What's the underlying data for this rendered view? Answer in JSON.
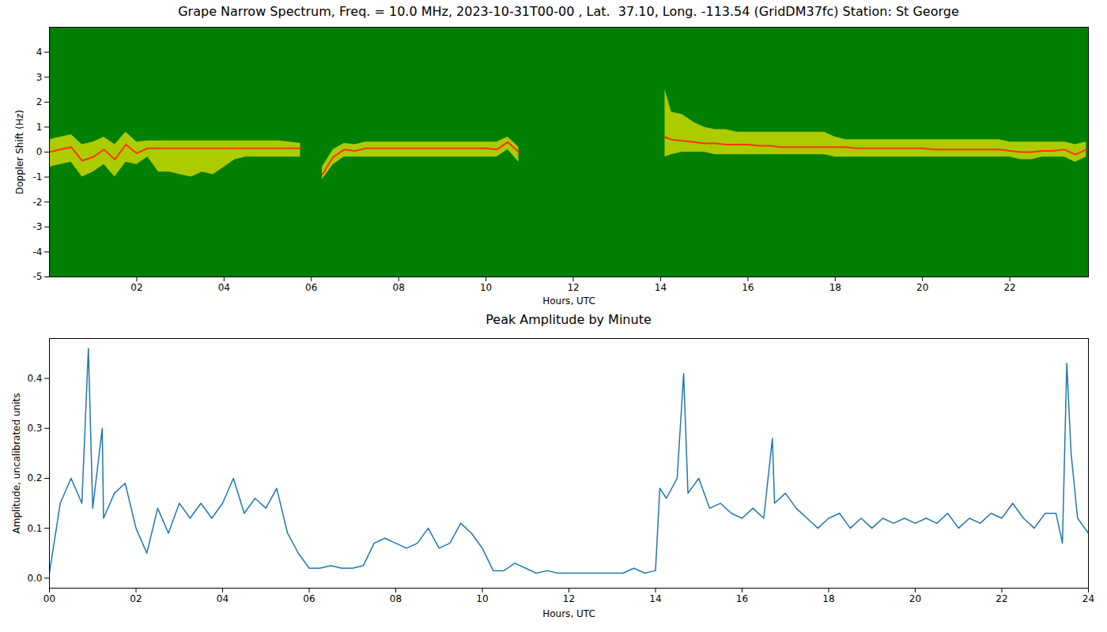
{
  "chart_data": [
    {
      "type": "line",
      "title": "Grape Narrow Spectrum, Freq. = 10.0 MHz, 2023-10-31T00-00 , Lat.  37.10, Long. -113.54 (GridDM37fc) Station: St George",
      "x_label": "Hours, UTC",
      "y_label": "Doppler Shift (Hz)",
      "x": [
        0,
        0.25,
        0.5,
        0.75,
        1,
        1.25,
        1.5,
        1.75,
        2,
        2.25,
        2.5,
        2.75,
        3,
        3.25,
        3.5,
        3.75,
        4,
        4.25,
        4.5,
        4.75,
        5,
        5.25,
        5.5,
        5.75,
        6,
        6.25,
        6.5,
        6.75,
        7,
        7.25,
        7.5,
        7.75,
        8,
        8.25,
        8.5,
        8.75,
        9,
        9.25,
        9.5,
        9.75,
        10,
        10.25,
        10.5,
        10.75,
        11,
        11.25,
        11.5,
        11.75,
        12,
        12.25,
        12.5,
        12.75,
        13,
        13.25,
        13.5,
        13.75,
        14,
        14.1,
        14.25,
        14.5,
        14.75,
        15,
        15.25,
        15.5,
        15.75,
        16,
        16.25,
        16.5,
        16.75,
        17,
        17.25,
        17.5,
        17.75,
        18,
        18.25,
        18.5,
        18.75,
        19,
        19.25,
        19.5,
        19.75,
        20,
        20.25,
        20.5,
        20.75,
        21,
        21.25,
        21.5,
        21.75,
        22,
        22.25,
        22.5,
        22.75,
        23,
        23.25,
        23.5,
        23.75
      ],
      "series": [
        {
          "type": "area",
          "color": "#e6e600",
          "values_low": [
            -0.6,
            -0.5,
            -0.4,
            -1.0,
            -0.8,
            -0.5,
            -1.0,
            -0.4,
            -0.5,
            -0.2,
            -0.8,
            -0.8,
            -0.9,
            -1.0,
            -0.8,
            -0.9,
            -0.6,
            -0.3,
            -0.2,
            -0.2,
            -0.2,
            -0.2,
            -0.2,
            -0.2,
            null,
            -1.1,
            -0.5,
            -0.2,
            -0.2,
            -0.2,
            -0.2,
            -0.2,
            -0.2,
            -0.2,
            -0.2,
            -0.2,
            -0.2,
            -0.2,
            -0.2,
            -0.2,
            -0.2,
            -0.2,
            0.1,
            -0.4,
            null,
            null,
            null,
            null,
            null,
            null,
            null,
            null,
            null,
            null,
            null,
            null,
            null,
            -0.2,
            -0.1,
            0.0,
            0.0,
            0.0,
            -0.1,
            -0.1,
            -0.1,
            -0.1,
            -0.1,
            -0.1,
            -0.1,
            -0.1,
            -0.1,
            -0.1,
            -0.1,
            -0.2,
            -0.2,
            -0.2,
            -0.2,
            -0.2,
            -0.2,
            -0.2,
            -0.2,
            -0.2,
            -0.2,
            -0.2,
            -0.2,
            -0.2,
            -0.2,
            -0.2,
            -0.2,
            -0.2,
            -0.3,
            -0.3,
            -0.2,
            -0.2,
            -0.2,
            -0.4,
            -0.2
          ],
          "values_high": [
            0.5,
            0.6,
            0.7,
            0.3,
            0.4,
            0.6,
            0.3,
            0.8,
            0.4,
            0.45,
            0.45,
            0.45,
            0.45,
            0.45,
            0.45,
            0.45,
            0.45,
            0.45,
            0.45,
            0.45,
            0.45,
            0.45,
            0.4,
            0.35,
            null,
            -0.6,
            0.1,
            0.35,
            0.3,
            0.4,
            0.4,
            0.4,
            0.4,
            0.4,
            0.4,
            0.4,
            0.4,
            0.4,
            0.4,
            0.4,
            0.4,
            0.4,
            0.6,
            0.2,
            null,
            null,
            null,
            null,
            null,
            null,
            null,
            null,
            null,
            null,
            null,
            null,
            null,
            2.5,
            1.6,
            1.5,
            1.2,
            1.0,
            0.9,
            0.9,
            0.8,
            0.8,
            0.8,
            0.8,
            0.8,
            0.8,
            0.8,
            0.8,
            0.8,
            0.6,
            0.5,
            0.5,
            0.5,
            0.5,
            0.5,
            0.5,
            0.5,
            0.5,
            0.5,
            0.5,
            0.5,
            0.5,
            0.5,
            0.5,
            0.5,
            0.4,
            0.4,
            0.4,
            0.4,
            0.4,
            0.4,
            0.3,
            0.4
          ]
        },
        {
          "type": "line",
          "color": "#ff3300",
          "values": [
            0.0,
            0.1,
            0.2,
            -0.35,
            -0.2,
            0.1,
            -0.3,
            0.3,
            -0.05,
            0.15,
            0.15,
            0.15,
            0.15,
            0.15,
            0.15,
            0.15,
            0.15,
            0.15,
            0.15,
            0.15,
            0.15,
            0.15,
            0.15,
            0.15,
            null,
            -0.9,
            -0.2,
            0.1,
            0.05,
            0.15,
            0.15,
            0.15,
            0.15,
            0.15,
            0.15,
            0.15,
            0.15,
            0.15,
            0.15,
            0.15,
            0.15,
            0.1,
            0.4,
            0.0,
            null,
            null,
            null,
            null,
            null,
            null,
            null,
            null,
            null,
            null,
            null,
            null,
            null,
            0.6,
            0.5,
            0.45,
            0.4,
            0.35,
            0.35,
            0.3,
            0.3,
            0.3,
            0.25,
            0.25,
            0.2,
            0.2,
            0.2,
            0.2,
            0.2,
            0.2,
            0.2,
            0.15,
            0.15,
            0.15,
            0.15,
            0.15,
            0.15,
            0.15,
            0.1,
            0.1,
            0.1,
            0.1,
            0.1,
            0.1,
            0.1,
            0.05,
            0.0,
            0.0,
            0.05,
            0.05,
            0.1,
            -0.1,
            0.1
          ]
        }
      ],
      "xlim": [
        0,
        23.8
      ],
      "ylim": [
        -5,
        5
      ],
      "xticks": [
        {
          "value": 2,
          "label": "02"
        },
        {
          "value": 4,
          "label": "04"
        },
        {
          "value": 6,
          "label": "06"
        },
        {
          "value": 8,
          "label": "08"
        },
        {
          "value": 10,
          "label": "10"
        },
        {
          "value": 12,
          "label": "12"
        },
        {
          "value": 14,
          "label": "14"
        },
        {
          "value": 16,
          "label": "16"
        },
        {
          "value": 18,
          "label": "18"
        },
        {
          "value": 20,
          "label": "20"
        },
        {
          "value": 22,
          "label": "22"
        }
      ],
      "yticks": [
        -5,
        -4,
        -3,
        -2,
        -1,
        0,
        1,
        2,
        3,
        4
      ]
    },
    {
      "type": "line",
      "title": "Peak Amplitude by Minute",
      "x_label": "Hours, UTC",
      "y_label": "Amplitude, uncalibrated units",
      "color": "#1f77b4",
      "x": [
        0,
        0.25,
        0.5,
        0.75,
        0.9,
        1,
        1.22,
        1.25,
        1.5,
        1.75,
        2,
        2.25,
        2.5,
        2.75,
        3,
        3.25,
        3.5,
        3.75,
        4,
        4.25,
        4.5,
        4.75,
        5,
        5.25,
        5.5,
        5.75,
        6,
        6.25,
        6.5,
        6.75,
        7,
        7.25,
        7.5,
        7.75,
        8,
        8.25,
        8.5,
        8.75,
        9,
        9.25,
        9.5,
        9.75,
        10,
        10.25,
        10.5,
        10.75,
        11,
        11.25,
        11.5,
        11.75,
        12,
        12.25,
        12.5,
        12.75,
        13,
        13.25,
        13.5,
        13.75,
        14,
        14.1,
        14.25,
        14.5,
        14.65,
        14.75,
        15,
        15.25,
        15.5,
        15.75,
        16,
        16.25,
        16.5,
        16.7,
        16.75,
        17,
        17.25,
        17.5,
        17.75,
        18,
        18.25,
        18.5,
        18.75,
        19,
        19.25,
        19.5,
        19.75,
        20,
        20.25,
        20.5,
        20.75,
        21,
        21.25,
        21.5,
        21.75,
        22,
        22.25,
        22.5,
        22.75,
        23,
        23.25,
        23.4,
        23.5,
        23.6,
        23.75,
        24
      ],
      "values": [
        0.01,
        0.15,
        0.2,
        0.15,
        0.46,
        0.14,
        0.3,
        0.12,
        0.17,
        0.19,
        0.1,
        0.05,
        0.14,
        0.09,
        0.15,
        0.12,
        0.15,
        0.12,
        0.15,
        0.2,
        0.13,
        0.16,
        0.14,
        0.18,
        0.09,
        0.05,
        0.02,
        0.02,
        0.025,
        0.02,
        0.02,
        0.025,
        0.07,
        0.08,
        0.07,
        0.06,
        0.07,
        0.1,
        0.06,
        0.07,
        0.11,
        0.09,
        0.06,
        0.015,
        0.015,
        0.03,
        0.02,
        0.01,
        0.015,
        0.01,
        0.01,
        0.01,
        0.01,
        0.01,
        0.01,
        0.01,
        0.02,
        0.01,
        0.015,
        0.18,
        0.16,
        0.2,
        0.41,
        0.17,
        0.2,
        0.14,
        0.15,
        0.13,
        0.12,
        0.14,
        0.12,
        0.28,
        0.15,
        0.17,
        0.14,
        0.12,
        0.1,
        0.12,
        0.13,
        0.1,
        0.12,
        0.1,
        0.12,
        0.11,
        0.12,
        0.11,
        0.12,
        0.11,
        0.13,
        0.1,
        0.12,
        0.11,
        0.13,
        0.12,
        0.15,
        0.12,
        0.1,
        0.13,
        0.13,
        0.07,
        0.43,
        0.25,
        0.12,
        0.09
      ],
      "xlim": [
        0,
        24
      ],
      "ylim": [
        -0.02,
        0.48
      ],
      "xticks": [
        {
          "value": 0,
          "label": "00"
        },
        {
          "value": 2,
          "label": "02"
        },
        {
          "value": 4,
          "label": "04"
        },
        {
          "value": 6,
          "label": "06"
        },
        {
          "value": 8,
          "label": "08"
        },
        {
          "value": 10,
          "label": "10"
        },
        {
          "value": 12,
          "label": "12"
        },
        {
          "value": 14,
          "label": "14"
        },
        {
          "value": 16,
          "label": "16"
        },
        {
          "value": 18,
          "label": "18"
        },
        {
          "value": 20,
          "label": "20"
        },
        {
          "value": 22,
          "label": "22"
        },
        {
          "value": 24,
          "label": "24"
        }
      ],
      "yticks": [
        {
          "value": 0,
          "label": "0.0"
        },
        0.1,
        0.2,
        0.3,
        0.4
      ]
    }
  ]
}
